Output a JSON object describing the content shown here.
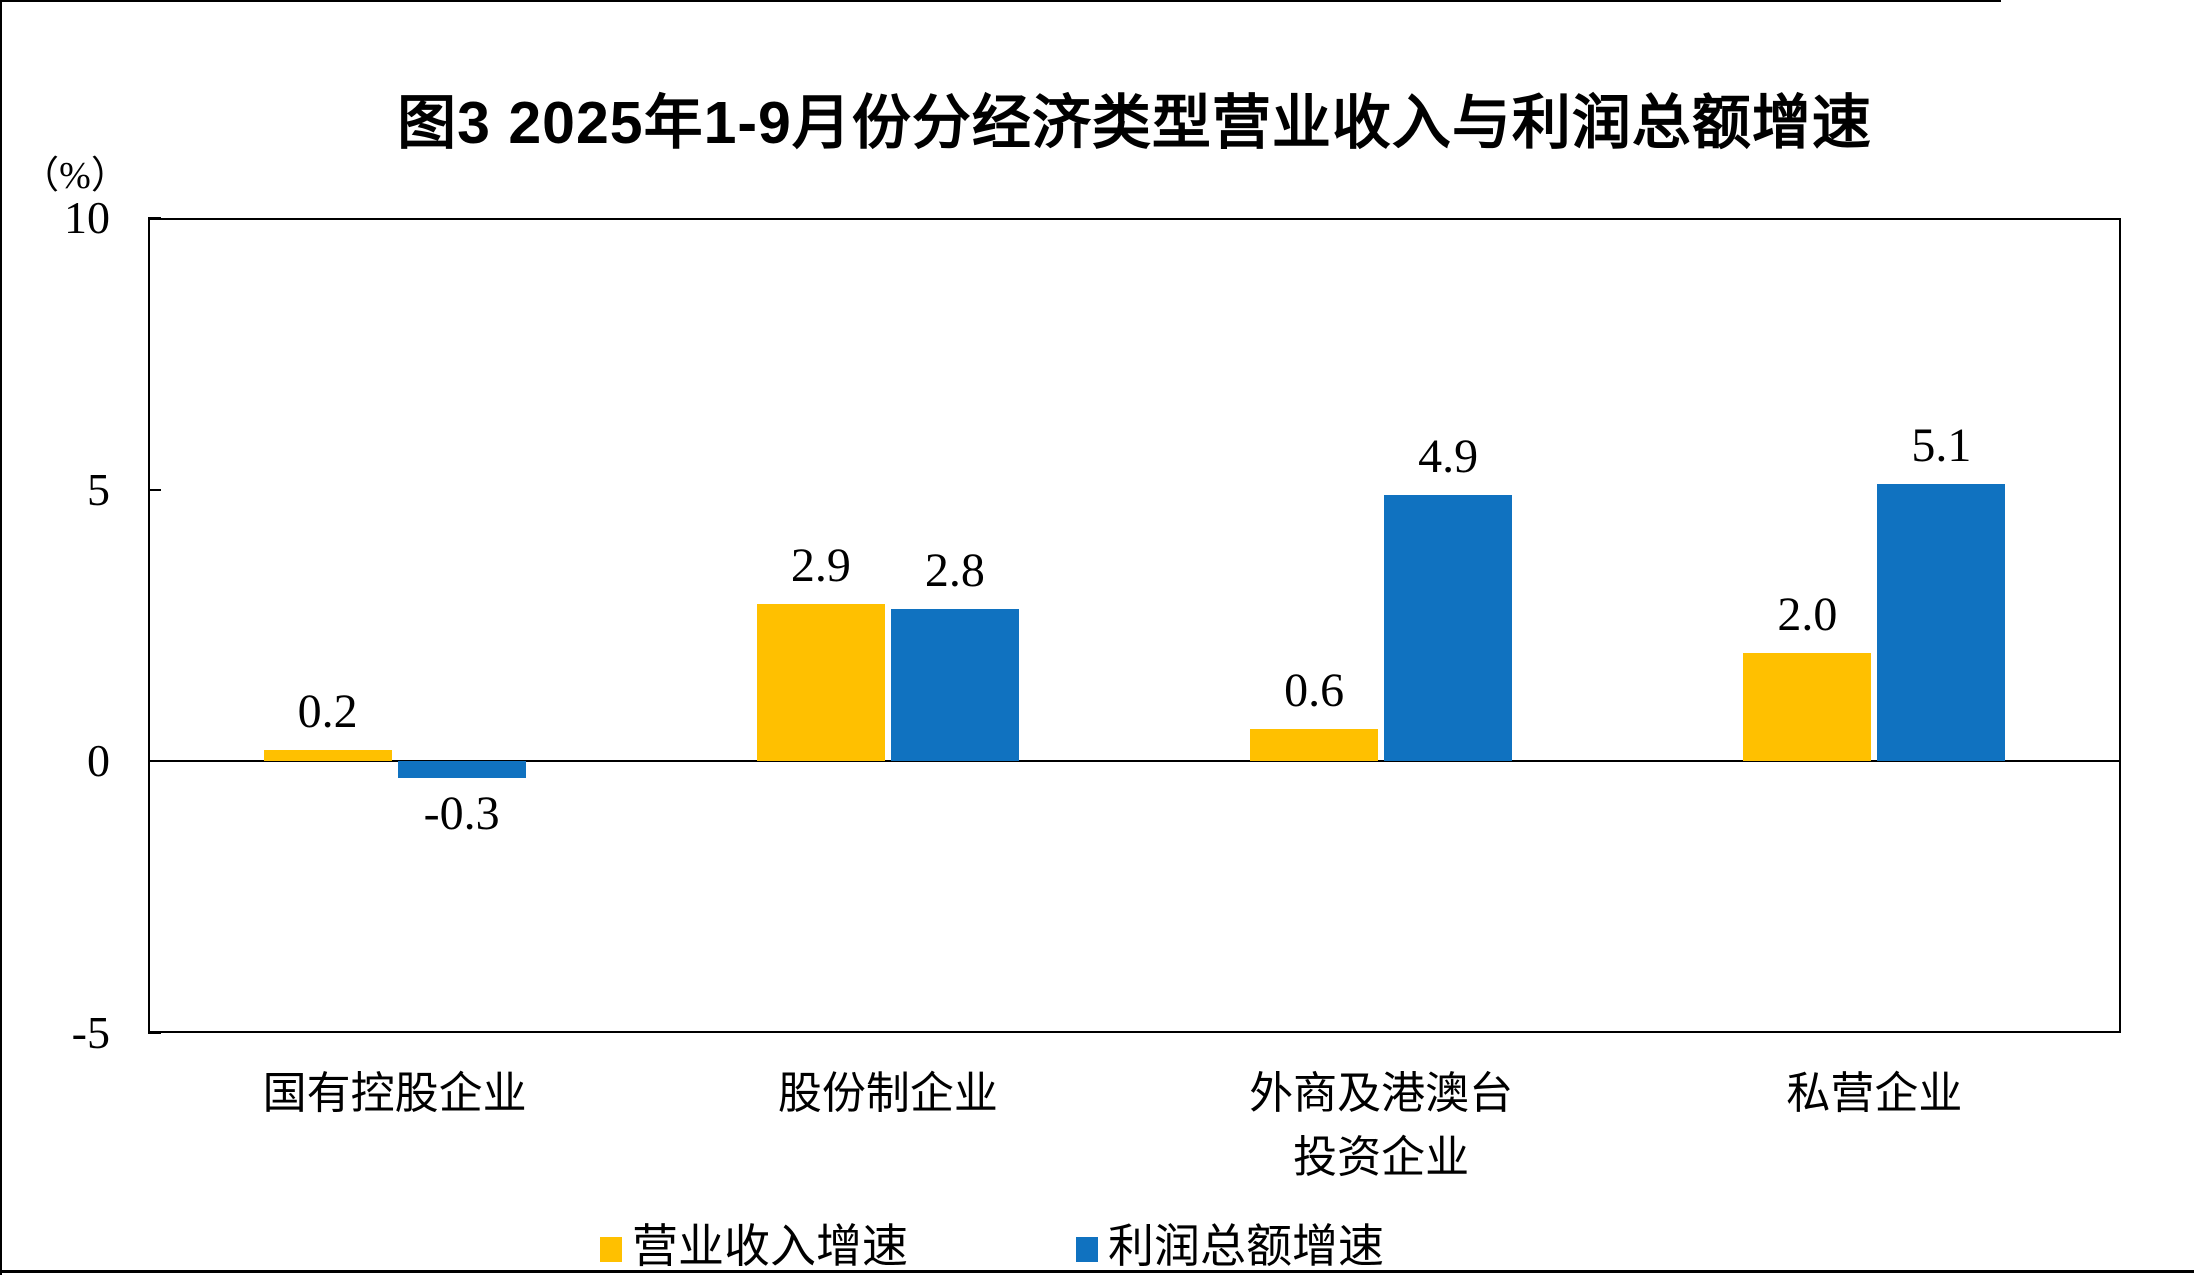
{
  "figure": {
    "title": "图3  2025年1-9月份分经济类型营业收入与利润总额增速",
    "y_axis_unit_label": "（%）"
  },
  "chart_data": {
    "type": "bar",
    "title": "图3  2025年1-9月份分经济类型营业收入与利润总额增速",
    "ylabel": "（%）",
    "categories": [
      "国有控股企业",
      "股份制企业",
      "外商及港澳台\n投资企业",
      "私营企业"
    ],
    "series": [
      {
        "name": "营业收入增速",
        "color": "#FFC000",
        "values": [
          0.2,
          2.9,
          0.6,
          2.0
        ]
      },
      {
        "name": "利润总额增速",
        "color": "#1072C0",
        "values": [
          -0.3,
          2.8,
          4.9,
          5.1
        ]
      }
    ],
    "ylim": [
      -5,
      10
    ],
    "yticks": [
      10,
      5,
      0,
      -5
    ],
    "data_labels": true,
    "legend_position": "bottom",
    "grid": false
  }
}
